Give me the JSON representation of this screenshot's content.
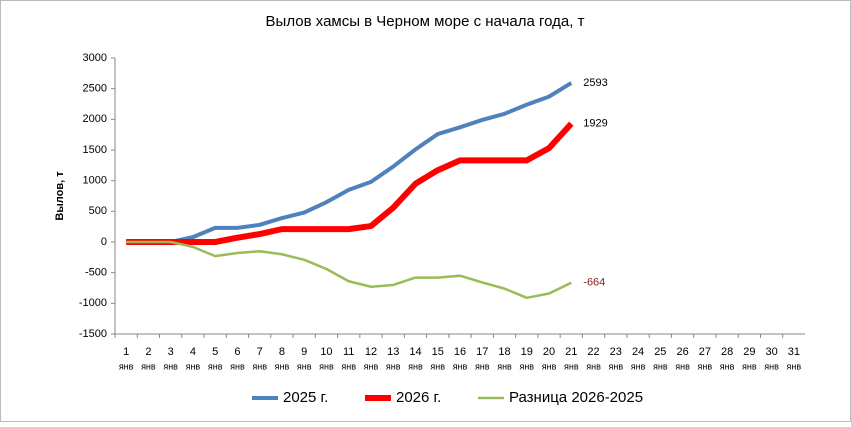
{
  "chart_data": {
    "type": "line",
    "title": "Вылов хамсы в Черном море с начала года, т",
    "y_label": "Вылов, т",
    "categories": [
      "1",
      "2",
      "3",
      "4",
      "5",
      "6",
      "7",
      "8",
      "9",
      "10",
      "11",
      "12",
      "13",
      "14",
      "15",
      "16",
      "17",
      "18",
      "19",
      "20",
      "21",
      "22",
      "23",
      "24",
      "25",
      "26",
      "27",
      "28",
      "29",
      "30",
      "31"
    ],
    "month_label": "янв",
    "ylim": [
      -1500,
      3000
    ],
    "yticks": [
      -1500,
      -1000,
      -500,
      0,
      500,
      1000,
      1500,
      2000,
      2500,
      3000
    ],
    "grid": false,
    "legend": "bottom",
    "series": [
      {
        "name": "2025 г.",
        "color": "#4f81bd",
        "width": 4,
        "label_color": "#000000",
        "values": [
          0,
          0,
          0,
          80,
          230,
          230,
          280,
          390,
          480,
          650,
          850,
          980,
          1230,
          1510,
          1760,
          1870,
          1990,
          2090,
          2240,
          2370,
          2593,
          null,
          null,
          null,
          null,
          null,
          null,
          null,
          null,
          null,
          null
        ]
      },
      {
        "name": "2026 г.",
        "color": "#ff0000",
        "width": 6,
        "label_color": "#000000",
        "values": [
          0,
          0,
          0,
          0,
          0,
          70,
          130,
          210,
          210,
          210,
          210,
          260,
          560,
          950,
          1170,
          1330,
          1330,
          1330,
          1330,
          1530,
          1929,
          null,
          null,
          null,
          null,
          null,
          null,
          null,
          null,
          null,
          null
        ]
      },
      {
        "name": "Разница 2026-2025",
        "color": "#9bbb59",
        "width": 2.5,
        "label_color": "#8b1a1a",
        "values": [
          0,
          0,
          0,
          -80,
          -230,
          -180,
          -150,
          -200,
          -290,
          -440,
          -640,
          -730,
          -700,
          -580,
          -580,
          -550,
          -660,
          -760,
          -910,
          -840,
          -664,
          null,
          null,
          null,
          null,
          null,
          null,
          null,
          null,
          null,
          null
        ]
      }
    ]
  }
}
